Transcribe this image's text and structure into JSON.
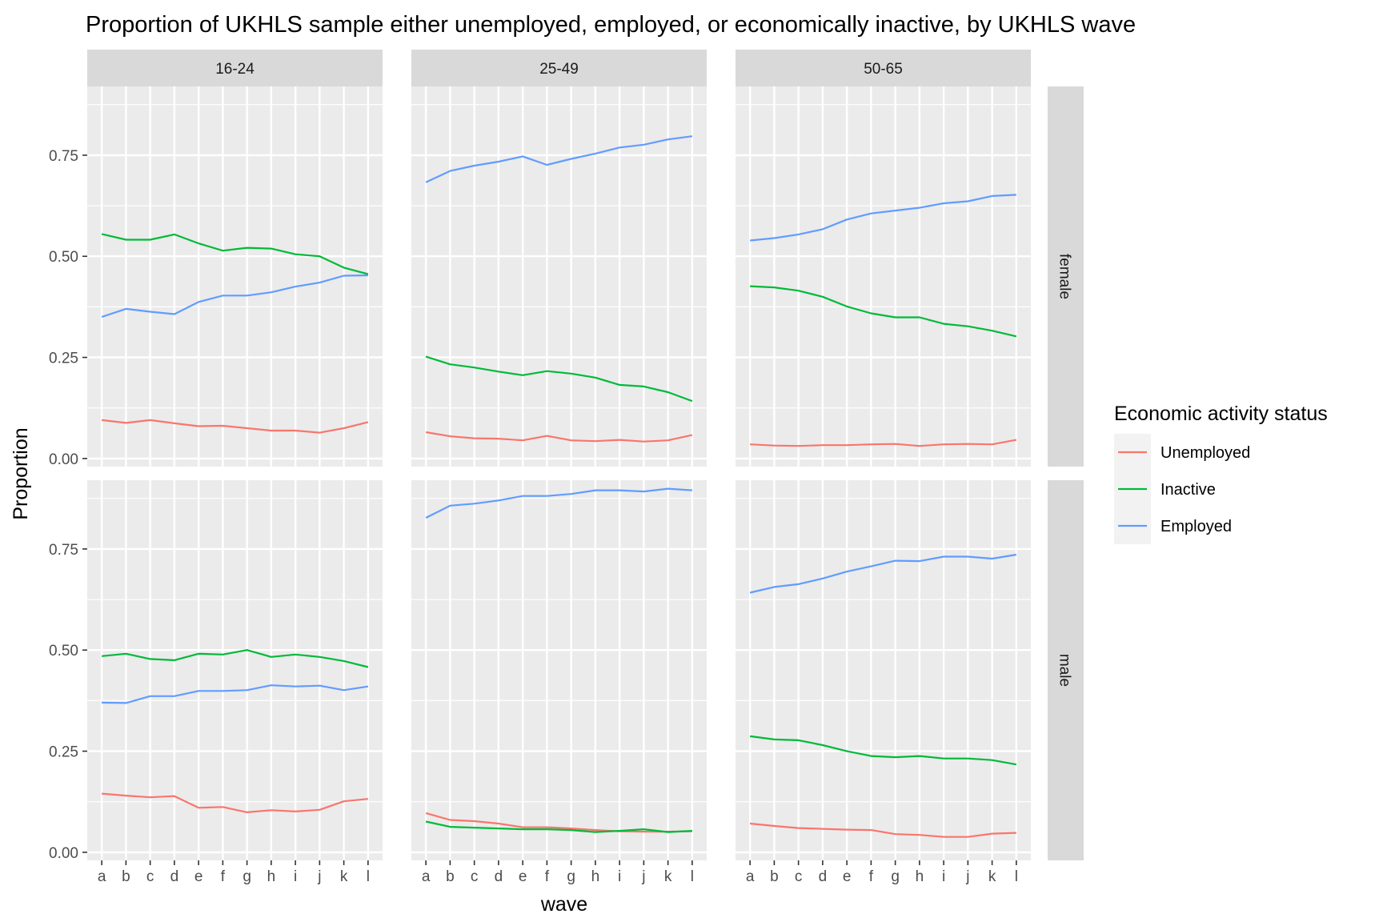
{
  "chart_data": {
    "type": "line",
    "title": "Proportion of UKHLS sample either unemployed, employed, or economically inactive, by UKHLS wave",
    "xlabel": "wave",
    "ylabel": "Proportion",
    "x": [
      "a",
      "b",
      "c",
      "d",
      "e",
      "f",
      "g",
      "h",
      "i",
      "j",
      "k",
      "l"
    ],
    "ylim": [
      -0.02,
      0.92
    ],
    "yticks": [
      "0.00",
      "0.25",
      "0.50",
      "0.75"
    ],
    "grid": true,
    "legend": {
      "title": "Economic activity status",
      "placement": "right",
      "entries": [
        {
          "name": "Unemployed",
          "color": "#F8766D"
        },
        {
          "name": "Inactive",
          "color": "#00BA38"
        },
        {
          "name": "Employed",
          "color": "#619CFF"
        }
      ]
    },
    "col_facets": [
      "16-24",
      "25-49",
      "50-65"
    ],
    "row_facets": [
      "female",
      "male"
    ],
    "panels": [
      {
        "row": "female",
        "col": "16-24",
        "series": [
          {
            "name": "Unemployed",
            "values": [
              0.095,
              0.088,
              0.095,
              0.087,
              0.08,
              0.081,
              0.075,
              0.069,
              0.069,
              0.064,
              0.075,
              0.09
            ]
          },
          {
            "name": "Inactive",
            "values": [
              0.555,
              0.541,
              0.541,
              0.554,
              0.532,
              0.514,
              0.521,
              0.519,
              0.505,
              0.5,
              0.472,
              0.456
            ]
          },
          {
            "name": "Employed",
            "values": [
              0.35,
              0.37,
              0.363,
              0.357,
              0.387,
              0.403,
              0.403,
              0.411,
              0.425,
              0.435,
              0.452,
              0.453
            ]
          }
        ]
      },
      {
        "row": "female",
        "col": "25-49",
        "series": [
          {
            "name": "Unemployed",
            "values": [
              0.065,
              0.055,
              0.05,
              0.049,
              0.045,
              0.056,
              0.045,
              0.043,
              0.046,
              0.042,
              0.045,
              0.058
            ]
          },
          {
            "name": "Inactive",
            "values": [
              0.252,
              0.233,
              0.225,
              0.215,
              0.206,
              0.216,
              0.21,
              0.2,
              0.182,
              0.178,
              0.164,
              0.142
            ]
          },
          {
            "name": "Employed",
            "values": [
              0.683,
              0.711,
              0.724,
              0.734,
              0.747,
              0.726,
              0.741,
              0.754,
              0.769,
              0.776,
              0.789,
              0.797
            ]
          }
        ]
      },
      {
        "row": "female",
        "col": "50-65",
        "series": [
          {
            "name": "Unemployed",
            "values": [
              0.035,
              0.032,
              0.031,
              0.033,
              0.033,
              0.035,
              0.036,
              0.031,
              0.035,
              0.036,
              0.035,
              0.046
            ]
          },
          {
            "name": "Inactive",
            "values": [
              0.426,
              0.423,
              0.415,
              0.4,
              0.376,
              0.359,
              0.349,
              0.349,
              0.333,
              0.327,
              0.316,
              0.302
            ]
          },
          {
            "name": "Employed",
            "values": [
              0.539,
              0.545,
              0.554,
              0.567,
              0.591,
              0.606,
              0.613,
              0.62,
              0.631,
              0.636,
              0.649,
              0.652
            ]
          }
        ]
      },
      {
        "row": "male",
        "col": "16-24",
        "series": [
          {
            "name": "Unemployed",
            "values": [
              0.145,
              0.14,
              0.136,
              0.139,
              0.11,
              0.112,
              0.099,
              0.104,
              0.101,
              0.105,
              0.126,
              0.132
            ]
          },
          {
            "name": "Inactive",
            "values": [
              0.485,
              0.491,
              0.478,
              0.475,
              0.491,
              0.489,
              0.5,
              0.483,
              0.489,
              0.483,
              0.473,
              0.458
            ]
          },
          {
            "name": "Employed",
            "values": [
              0.37,
              0.369,
              0.386,
              0.386,
              0.399,
              0.399,
              0.401,
              0.413,
              0.41,
              0.412,
              0.401,
              0.41
            ]
          }
        ]
      },
      {
        "row": "male",
        "col": "25-49",
        "series": [
          {
            "name": "Unemployed",
            "values": [
              0.097,
              0.08,
              0.077,
              0.071,
              0.062,
              0.062,
              0.059,
              0.055,
              0.052,
              0.051,
              0.051,
              0.052
            ]
          },
          {
            "name": "Inactive",
            "values": [
              0.076,
              0.063,
              0.061,
              0.059,
              0.057,
              0.057,
              0.055,
              0.05,
              0.053,
              0.057,
              0.05,
              0.053
            ]
          },
          {
            "name": "Employed",
            "values": [
              0.827,
              0.857,
              0.862,
              0.87,
              0.881,
              0.881,
              0.886,
              0.895,
              0.895,
              0.892,
              0.899,
              0.895
            ]
          }
        ]
      },
      {
        "row": "male",
        "col": "50-65",
        "series": [
          {
            "name": "Unemployed",
            "values": [
              0.071,
              0.065,
              0.06,
              0.058,
              0.056,
              0.055,
              0.045,
              0.043,
              0.038,
              0.038,
              0.046,
              0.048
            ]
          },
          {
            "name": "Inactive",
            "values": [
              0.287,
              0.279,
              0.277,
              0.265,
              0.25,
              0.238,
              0.235,
              0.238,
              0.232,
              0.232,
              0.228,
              0.217
            ]
          },
          {
            "name": "Employed",
            "values": [
              0.642,
              0.656,
              0.663,
              0.677,
              0.694,
              0.707,
              0.721,
              0.72,
              0.731,
              0.731,
              0.726,
              0.736
            ]
          }
        ]
      }
    ]
  }
}
